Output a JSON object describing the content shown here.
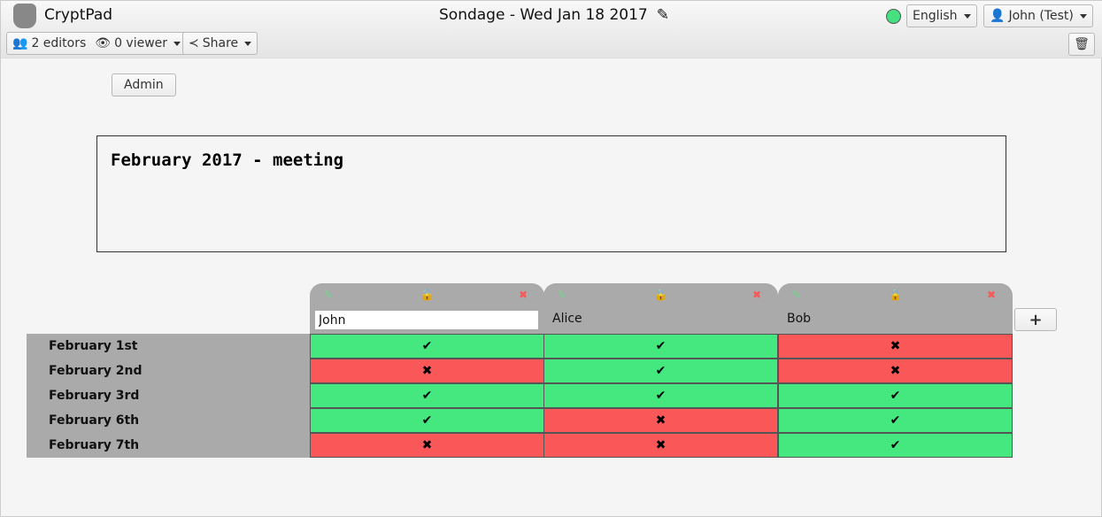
{
  "app": {
    "name": "CryptPad",
    "title": "Sondage - Wed Jan 18 2017",
    "status_color": "#45e07f"
  },
  "toolbar": {
    "editors": "2 editors",
    "viewers": "0 viewer",
    "share": "Share",
    "language": "English",
    "user": "John (Test)"
  },
  "admin_label": "Admin",
  "description": "February 2017 - meeting",
  "columns": [
    {
      "name": "John",
      "locked": false,
      "editing": true
    },
    {
      "name": "Alice",
      "locked": true
    },
    {
      "name": "Bob",
      "locked": true
    }
  ],
  "rows": [
    {
      "label": "February 1st",
      "values": [
        true,
        true,
        false
      ]
    },
    {
      "label": "February 2nd",
      "values": [
        false,
        true,
        false
      ]
    },
    {
      "label": "February 3rd",
      "values": [
        true,
        true,
        true
      ]
    },
    {
      "label": "February 6th",
      "values": [
        true,
        false,
        true
      ]
    },
    {
      "label": "February 7th",
      "values": [
        false,
        false,
        true
      ]
    }
  ],
  "symbols": {
    "yes": "✔",
    "no": "✖",
    "add": "+"
  },
  "colors": {
    "yes": "#45e77f",
    "no": "#fa5858",
    "header": "#aaaaaa"
  }
}
